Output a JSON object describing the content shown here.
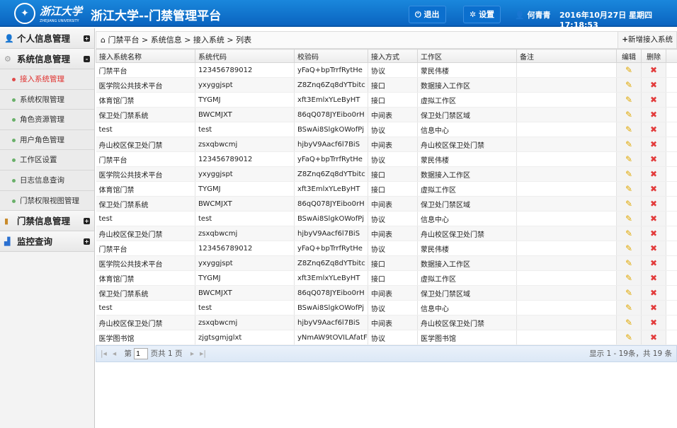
{
  "header": {
    "logo_text": "浙江大学",
    "logo_sub": "ZHEJIANG UNIVERSITY",
    "title": "浙江大学--门禁管理平台",
    "logout": "退出",
    "settings": "设置",
    "user": "何青青",
    "datetime": "2016年10月27日 星期四 17:18:53"
  },
  "sidebar": {
    "groups": [
      {
        "label": "个人信息管理",
        "icon": "user-icon",
        "toggle": "+"
      },
      {
        "label": "系统信息管理",
        "icon": "gear-icon",
        "toggle": "-",
        "items": [
          "接入系统管理",
          "系统权限管理",
          "角色资源管理",
          "用户角色管理",
          "工作区设置",
          "日志信息查询",
          "门禁权限视图管理"
        ],
        "active": 0
      },
      {
        "label": "门禁信息管理",
        "icon": "door-icon",
        "toggle": "+"
      },
      {
        "label": "监控查询",
        "icon": "bar-chart-icon",
        "toggle": "+"
      }
    ]
  },
  "breadcrumb": "门禁平台 > 系统信息 > 接入系统 > 列表",
  "add_button": "新增接入系统",
  "table": {
    "columns": [
      "接入系统名称",
      "系统代码",
      "校验码",
      "接入方式",
      "工作区",
      "备注",
      "编辑",
      "删除"
    ],
    "rows": [
      [
        "门禁平台",
        "123456789012",
        "yFaQ+bpTrrfRytHe",
        "协议",
        "蒙民伟楼",
        ""
      ],
      [
        "医学院公共技术平台",
        "yxyggjspt",
        "Z8Znq6Zq8dYTbitc",
        "接口",
        "数据接入工作区",
        ""
      ],
      [
        "体育馆门禁",
        "TYGMJ",
        "xft3EmlxYLeByHT",
        "接口",
        "虚拟工作区",
        ""
      ],
      [
        "保卫处门禁系统",
        "BWCMJXT",
        "86qQ078JYEibo0rH",
        "中间表",
        "保卫处门禁区域",
        ""
      ],
      [
        "test",
        "test",
        "BSwAi8SlgkOWofPj",
        "协议",
        "信息中心",
        ""
      ],
      [
        "舟山校区保卫处门禁",
        "zsxqbwcmj",
        "hjbyV9Aacf6l7BiS",
        "中间表",
        "舟山校区保卫处门禁",
        ""
      ],
      [
        "门禁平台",
        "123456789012",
        "yFaQ+bpTrrfRytHe",
        "协议",
        "蒙民伟楼",
        ""
      ],
      [
        "医学院公共技术平台",
        "yxyggjspt",
        "Z8Znq6Zq8dYTbitc",
        "接口",
        "数据接入工作区",
        ""
      ],
      [
        "体育馆门禁",
        "TYGMJ",
        "xft3EmlxYLeByHT",
        "接口",
        "虚拟工作区",
        ""
      ],
      [
        "保卫处门禁系统",
        "BWCMJXT",
        "86qQ078JYEibo0rH",
        "中间表",
        "保卫处门禁区域",
        ""
      ],
      [
        "test",
        "test",
        "BSwAi8SlgkOWofPj",
        "协议",
        "信息中心",
        ""
      ],
      [
        "舟山校区保卫处门禁",
        "zsxqbwcmj",
        "hjbyV9Aacf6l7BiS",
        "中间表",
        "舟山校区保卫处门禁",
        ""
      ],
      [
        "门禁平台",
        "123456789012",
        "yFaQ+bpTrrfRytHe",
        "协议",
        "蒙民伟楼",
        ""
      ],
      [
        "医学院公共技术平台",
        "yxyggjspt",
        "Z8Znq6Zq8dYTbitc",
        "接口",
        "数据接入工作区",
        ""
      ],
      [
        "体育馆门禁",
        "TYGMJ",
        "xft3EmlxYLeByHT",
        "接口",
        "虚拟工作区",
        ""
      ],
      [
        "保卫处门禁系统",
        "BWCMJXT",
        "86qQ078JYEibo0rH",
        "中间表",
        "保卫处门禁区域",
        ""
      ],
      [
        "test",
        "test",
        "BSwAi8SlgkOWofPj",
        "协议",
        "信息中心",
        ""
      ],
      [
        "舟山校区保卫处门禁",
        "zsxqbwcmj",
        "hjbyV9Aacf6l7BiS",
        "中间表",
        "舟山校区保卫处门禁",
        ""
      ],
      [
        "医学图书馆",
        "zjgtsgmjglxt",
        "yNmAW9tOVILAfatF",
        "协议",
        "医学图书馆",
        ""
      ]
    ]
  },
  "pager": {
    "page_prefix": "第",
    "page": "1",
    "page_suffix": "页共 1 页",
    "info": "显示 1 - 19条，共 19 条"
  }
}
